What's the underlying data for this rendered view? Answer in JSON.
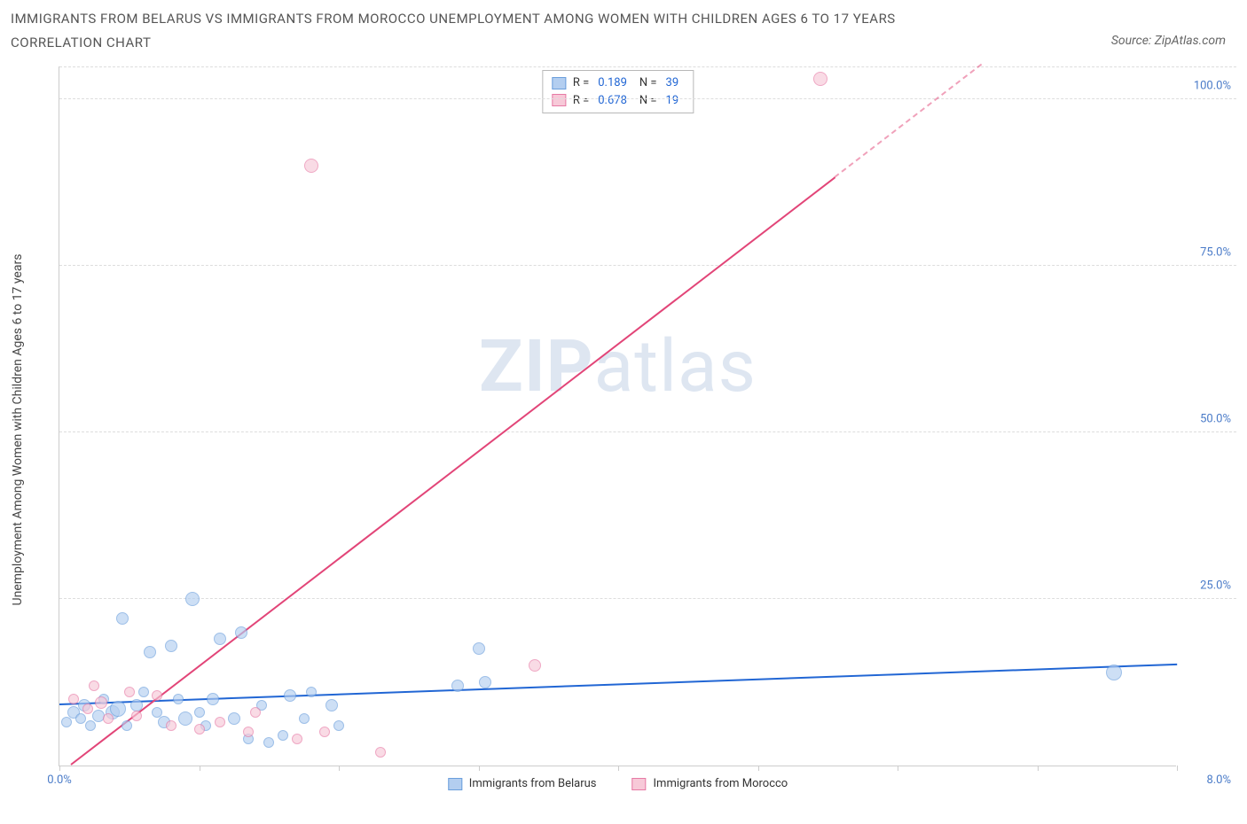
{
  "title": "IMMIGRANTS FROM BELARUS VS IMMIGRANTS FROM MOROCCO UNEMPLOYMENT AMONG WOMEN WITH CHILDREN AGES 6 TO 17 YEARS CORRELATION CHART",
  "source": "Source: ZipAtlas.com",
  "y_axis_label": "Unemployment Among Women with Children Ages 6 to 17 years",
  "watermark_bold": "ZIP",
  "watermark_rest": "atlas",
  "chart": {
    "type": "scatter",
    "background_color": "#ffffff",
    "grid_color": "#dddddd",
    "axis_line_color": "#cccccc",
    "xlim": [
      0,
      8
    ],
    "ylim": [
      0,
      105
    ],
    "x_ticks": [
      0,
      1,
      2,
      3,
      4,
      5,
      6,
      7,
      8
    ],
    "x_tick_labels_shown": {
      "0": "0.0%",
      "8": "8.0%"
    },
    "y_ticks": [
      25,
      50,
      75,
      100
    ],
    "y_tick_labels": [
      "25.0%",
      "50.0%",
      "75.0%",
      "100.0%"
    ],
    "series": [
      {
        "name": "Immigrants from Belarus",
        "color_fill": "#b3cef0",
        "color_stroke": "#6a9edc",
        "trend_color": "#2166d4",
        "marker_radius_range": [
          5,
          10
        ],
        "R_label": "R =",
        "R": "0.189",
        "N_label": "N =",
        "N": "39",
        "trend": {
          "x1": 0,
          "y1": 9.0,
          "x2": 8,
          "y2": 15.0,
          "dash_from_x": null
        },
        "points": [
          {
            "x": 0.05,
            "y": 6.5,
            "r": 6
          },
          {
            "x": 0.1,
            "y": 8.0,
            "r": 7
          },
          {
            "x": 0.15,
            "y": 7.0,
            "r": 6
          },
          {
            "x": 0.18,
            "y": 9.0,
            "r": 7
          },
          {
            "x": 0.22,
            "y": 6.0,
            "r": 6
          },
          {
            "x": 0.28,
            "y": 7.5,
            "r": 7
          },
          {
            "x": 0.32,
            "y": 10.0,
            "r": 6
          },
          {
            "x": 0.38,
            "y": 8.0,
            "r": 8
          },
          {
            "x": 0.42,
            "y": 8.5,
            "r": 9
          },
          {
            "x": 0.45,
            "y": 22.0,
            "r": 7
          },
          {
            "x": 0.48,
            "y": 6.0,
            "r": 6
          },
          {
            "x": 0.55,
            "y": 9.0,
            "r": 7
          },
          {
            "x": 0.6,
            "y": 11.0,
            "r": 6
          },
          {
            "x": 0.65,
            "y": 17.0,
            "r": 7
          },
          {
            "x": 0.7,
            "y": 8.0,
            "r": 6
          },
          {
            "x": 0.75,
            "y": 6.5,
            "r": 7
          },
          {
            "x": 0.8,
            "y": 18.0,
            "r": 7
          },
          {
            "x": 0.85,
            "y": 10.0,
            "r": 6
          },
          {
            "x": 0.9,
            "y": 7.0,
            "r": 8
          },
          {
            "x": 0.95,
            "y": 25.0,
            "r": 8
          },
          {
            "x": 1.0,
            "y": 8.0,
            "r": 6
          },
          {
            "x": 1.05,
            "y": 6.0,
            "r": 6
          },
          {
            "x": 1.1,
            "y": 10.0,
            "r": 7
          },
          {
            "x": 1.15,
            "y": 19.0,
            "r": 7
          },
          {
            "x": 1.25,
            "y": 7.0,
            "r": 7
          },
          {
            "x": 1.3,
            "y": 20.0,
            "r": 7
          },
          {
            "x": 1.35,
            "y": 4.0,
            "r": 6
          },
          {
            "x": 1.45,
            "y": 9.0,
            "r": 6
          },
          {
            "x": 1.5,
            "y": 3.5,
            "r": 6
          },
          {
            "x": 1.6,
            "y": 4.5,
            "r": 6
          },
          {
            "x": 1.65,
            "y": 10.5,
            "r": 7
          },
          {
            "x": 1.75,
            "y": 7.0,
            "r": 6
          },
          {
            "x": 1.8,
            "y": 11.0,
            "r": 6
          },
          {
            "x": 1.95,
            "y": 9.0,
            "r": 7
          },
          {
            "x": 2.0,
            "y": 6.0,
            "r": 6
          },
          {
            "x": 2.85,
            "y": 12.0,
            "r": 7
          },
          {
            "x": 3.0,
            "y": 17.5,
            "r": 7
          },
          {
            "x": 3.05,
            "y": 12.5,
            "r": 7
          },
          {
            "x": 7.55,
            "y": 14.0,
            "r": 9
          }
        ]
      },
      {
        "name": "Immigrants from Morocco",
        "color_fill": "#f7c9d8",
        "color_stroke": "#e77aa5",
        "trend_color": "#e24578",
        "marker_radius_range": [
          5,
          10
        ],
        "R_label": "R =",
        "R": "0.678",
        "N_label": "N =",
        "N": "19",
        "trend": {
          "x1": 0.08,
          "y1": 0,
          "x2": 6.6,
          "y2": 105,
          "dash_from_x": 5.55
        },
        "points": [
          {
            "x": 0.1,
            "y": 10.0,
            "r": 6
          },
          {
            "x": 0.2,
            "y": 8.5,
            "r": 6
          },
          {
            "x": 0.25,
            "y": 12.0,
            "r": 6
          },
          {
            "x": 0.3,
            "y": 9.5,
            "r": 7
          },
          {
            "x": 0.35,
            "y": 7.0,
            "r": 6
          },
          {
            "x": 0.5,
            "y": 11.0,
            "r": 6
          },
          {
            "x": 0.55,
            "y": 7.5,
            "r": 6
          },
          {
            "x": 0.7,
            "y": 10.5,
            "r": 6
          },
          {
            "x": 0.8,
            "y": 6.0,
            "r": 6
          },
          {
            "x": 1.0,
            "y": 5.5,
            "r": 6
          },
          {
            "x": 1.15,
            "y": 6.5,
            "r": 6
          },
          {
            "x": 1.35,
            "y": 5.0,
            "r": 6
          },
          {
            "x": 1.4,
            "y": 8.0,
            "r": 6
          },
          {
            "x": 1.7,
            "y": 4.0,
            "r": 6
          },
          {
            "x": 1.9,
            "y": 5.0,
            "r": 6
          },
          {
            "x": 1.8,
            "y": 90.0,
            "r": 8
          },
          {
            "x": 2.3,
            "y": 2.0,
            "r": 6
          },
          {
            "x": 3.4,
            "y": 15.0,
            "r": 7
          },
          {
            "x": 5.45,
            "y": 103.0,
            "r": 8
          }
        ]
      }
    ]
  }
}
